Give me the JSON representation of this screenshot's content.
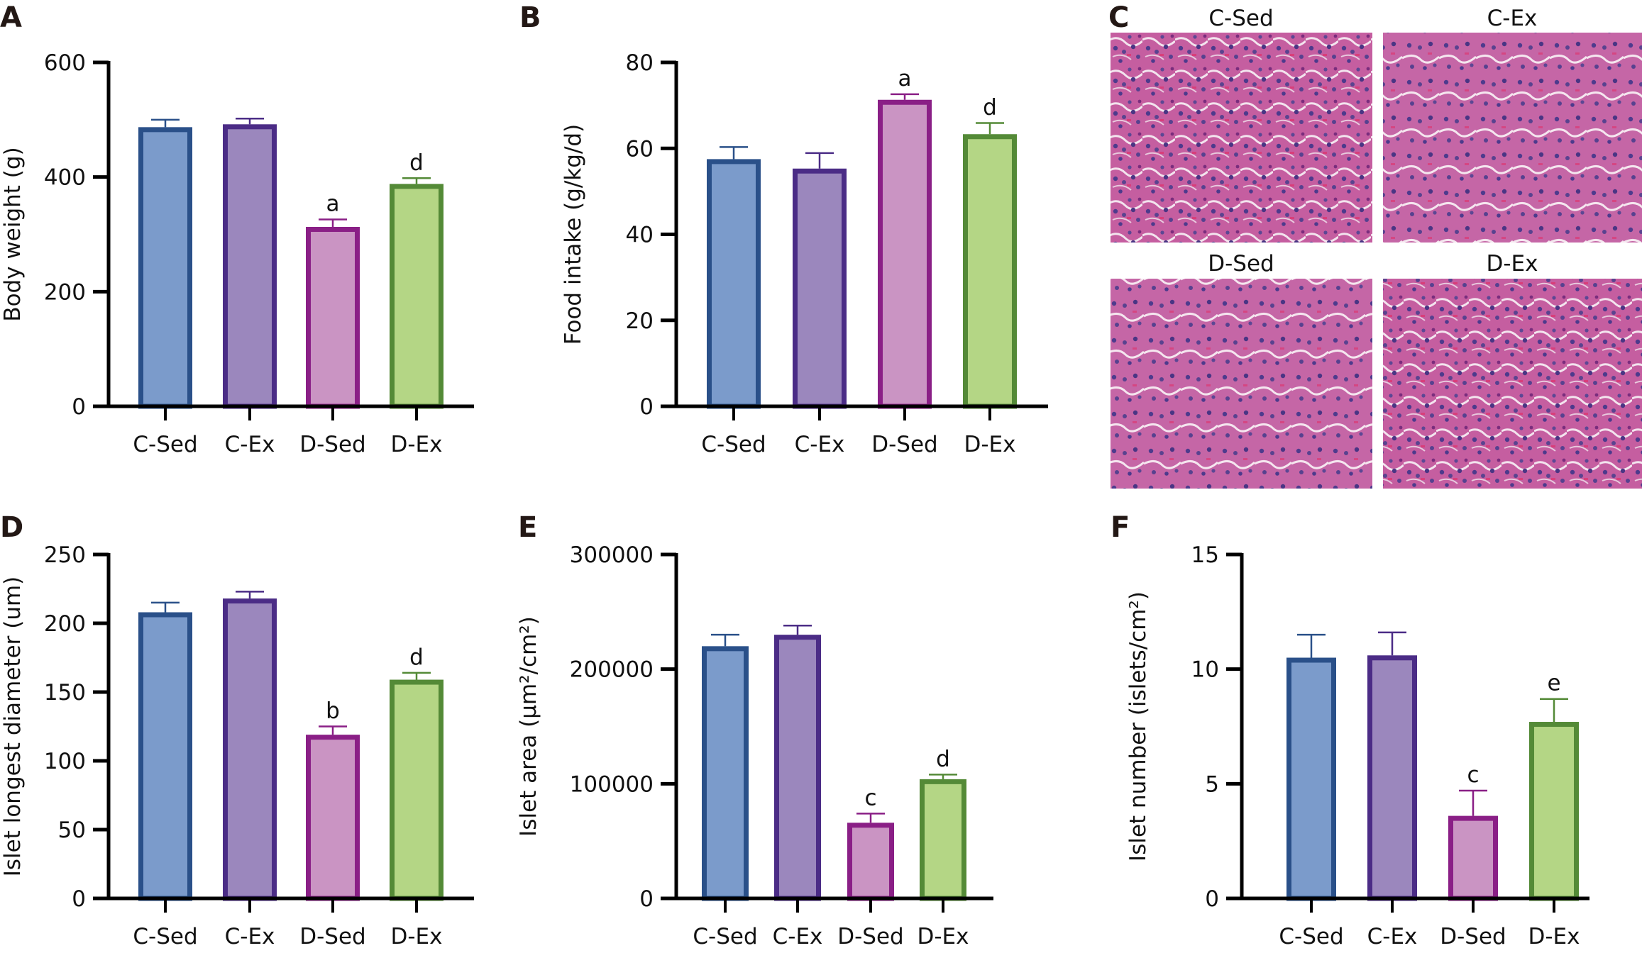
{
  "groups": [
    "C-Sed",
    "C-Ex",
    "D-Sed",
    "D-Ex"
  ],
  "colors": {
    "fills": [
      "#7b9bcb",
      "#9b87bd",
      "#ca94c3",
      "#b4d685"
    ],
    "strokes": [
      "#2a5089",
      "#4b2c86",
      "#8a1f86",
      "#548a37"
    ]
  },
  "histology": {
    "letter": "C",
    "labels": [
      "C-Sed",
      "C-Ex",
      "D-Sed",
      "D-Ex"
    ]
  },
  "chart_data": [
    {
      "id": "A",
      "letter": "A",
      "type": "bar",
      "categories": [
        "C-Sed",
        "C-Ex",
        "D-Sed",
        "D-Ex"
      ],
      "values": [
        487,
        492,
        313,
        388
      ],
      "errors": [
        13,
        10,
        13,
        10
      ],
      "sig": [
        "",
        "",
        "a",
        "d"
      ],
      "ylabel": "Body weight (g)",
      "ylim": [
        0,
        600
      ],
      "yticks": [
        "0",
        "200",
        "400",
        "600"
      ],
      "ytick_values": [
        0,
        200,
        400,
        600
      ]
    },
    {
      "id": "B",
      "letter": "B",
      "type": "bar",
      "categories": [
        "C-Sed",
        "C-Ex",
        "D-Sed",
        "D-Ex"
      ],
      "values": [
        57.5,
        55.3,
        71.3,
        63.3
      ],
      "errors": [
        2.8,
        3.6,
        1.3,
        2.6
      ],
      "sig": [
        "",
        "",
        "a",
        "d"
      ],
      "ylabel": "Food intake (g/kg/d)",
      "ylim": [
        0,
        80
      ],
      "yticks": [
        "0",
        "20",
        "40",
        "60",
        "80"
      ],
      "ytick_values": [
        0,
        20,
        40,
        60,
        80
      ]
    },
    {
      "id": "D",
      "letter": "D",
      "type": "bar",
      "categories": [
        "C-Sed",
        "C-Ex",
        "D-Sed",
        "D-Ex"
      ],
      "values": [
        208,
        218,
        119,
        159
      ],
      "errors": [
        7,
        5,
        6,
        5
      ],
      "sig": [
        "",
        "",
        "b",
        "d"
      ],
      "ylabel": "Islet longest diameter (um)",
      "ylim": [
        0,
        250
      ],
      "yticks": [
        "0",
        "50",
        "100",
        "150",
        "200",
        "250"
      ],
      "ytick_values": [
        0,
        50,
        100,
        150,
        200,
        250
      ]
    },
    {
      "id": "E",
      "letter": "E",
      "type": "bar",
      "categories": [
        "C-Sed",
        "C-Ex",
        "D-Sed",
        "D-Ex"
      ],
      "values": [
        220000,
        230000,
        66000,
        104000
      ],
      "errors": [
        10000,
        8000,
        8000,
        4000
      ],
      "sig": [
        "",
        "",
        "c",
        "d"
      ],
      "ylabel": "Islet area (μm²/cm²)",
      "ylim": [
        0,
        300000
      ],
      "yticks": [
        "0",
        "100000",
        "200000",
        "300000"
      ],
      "ytick_values": [
        0,
        100000,
        200000,
        300000
      ]
    },
    {
      "id": "F",
      "letter": "F",
      "type": "bar",
      "categories": [
        "C-Sed",
        "C-Ex",
        "D-Sed",
        "D-Ex"
      ],
      "values": [
        10.5,
        10.6,
        3.6,
        7.7
      ],
      "errors": [
        1.0,
        1.0,
        1.1,
        1.0
      ],
      "sig": [
        "",
        "",
        "c",
        "e"
      ],
      "ylabel": "Islet number (islets/cm²)",
      "ylim": [
        0,
        15
      ],
      "yticks": [
        "0",
        "5",
        "10",
        "15"
      ],
      "ytick_values": [
        0,
        5,
        10,
        15
      ]
    }
  ]
}
